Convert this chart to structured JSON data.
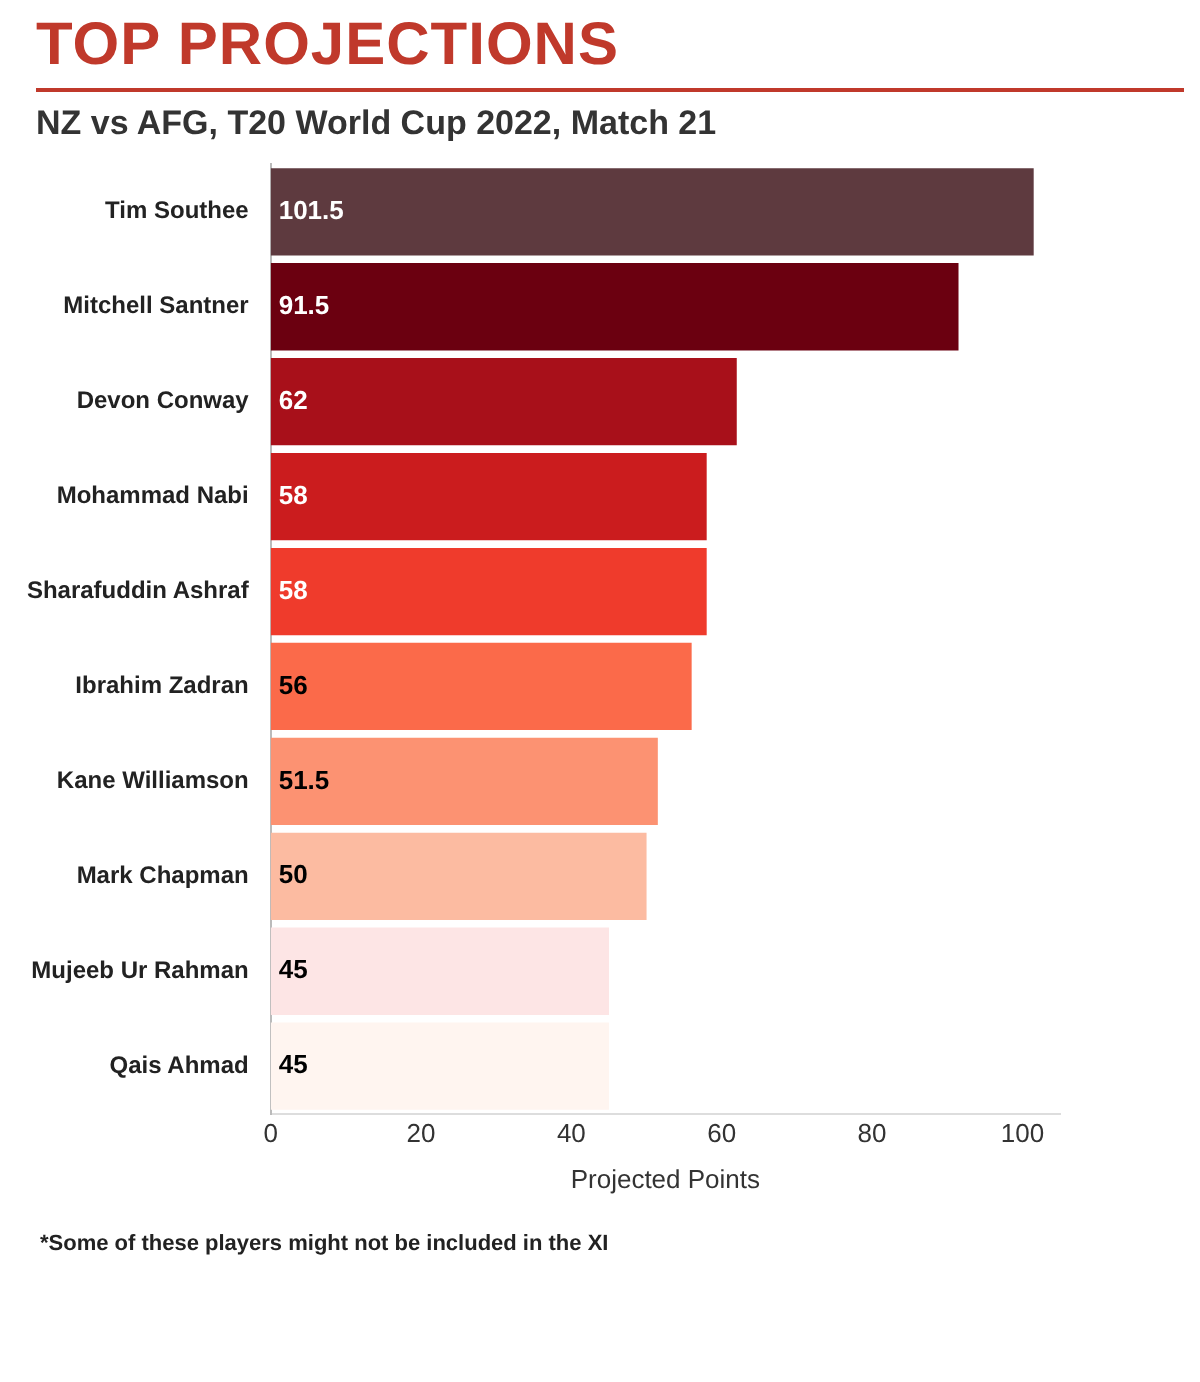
{
  "chart_data": {
    "type": "bar",
    "orientation": "horizontal",
    "title": "TOP PROJECTIONS",
    "subtitle": "NZ vs AFG, T20 World Cup 2022, Match 21",
    "xlabel": "Projected Points",
    "categories": [
      "Tim Southee",
      "Mitchell Santner",
      "Devon Conway",
      "Mohammad Nabi",
      "Sharafuddin Ashraf",
      "Ibrahim Zadran",
      "Kane Williamson",
      "Mark Chapman",
      "Mujeeb Ur Rahman",
      "Qais Ahmad"
    ],
    "values": [
      101.5,
      91.5,
      62,
      58,
      58,
      56,
      51.5,
      50,
      45,
      45
    ],
    "colors": [
      "#5e3a3f",
      "#6b0010",
      "#a8101a",
      "#cb1c1e",
      "#ef3b2c",
      "#fb6a4a",
      "#fc9272",
      "#fcbba1",
      "#fde5e5",
      "#fff5f0"
    ],
    "xlim": [
      0,
      105
    ],
    "xticks": [
      0,
      20,
      40,
      60,
      80,
      100
    ],
    "grid": false,
    "legend": false,
    "data_labels": true,
    "annotations": [
      "*Some of these players might not be included in the XI"
    ]
  }
}
